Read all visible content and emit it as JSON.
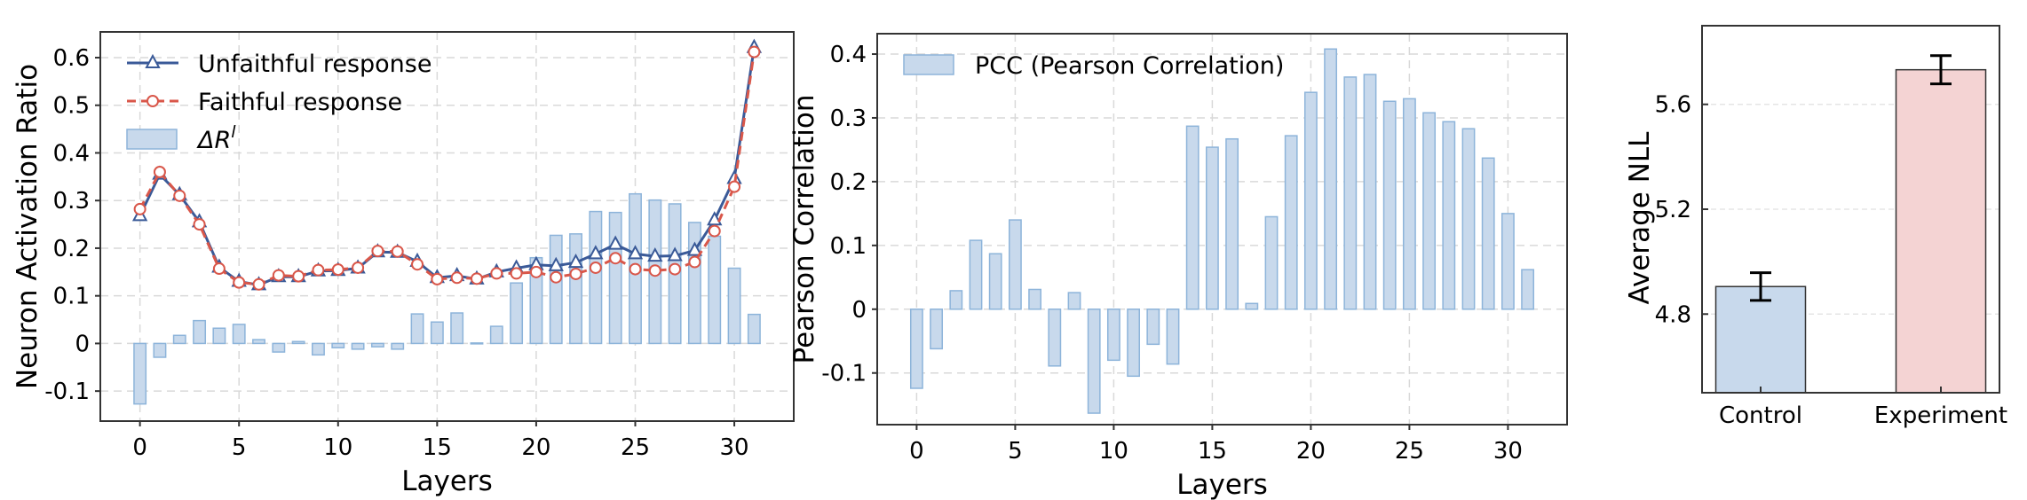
{
  "chart_data": [
    {
      "type": "line",
      "xlabel": "Layers",
      "ylabel": "Neuron Activation Ratio",
      "x": [
        0,
        1,
        2,
        3,
        4,
        5,
        6,
        7,
        8,
        9,
        10,
        11,
        12,
        13,
        14,
        15,
        16,
        17,
        18,
        19,
        20,
        21,
        22,
        23,
        24,
        25,
        26,
        27,
        28,
        29,
        30,
        31
      ],
      "xlim": [
        -2,
        33
      ],
      "ylim": [
        -0.163,
        0.654
      ],
      "xticks": [
        "0",
        "5",
        "10",
        "15",
        "20",
        "25",
        "30"
      ],
      "yticks": [
        "-0.1",
        "0",
        "0.1",
        "0.2",
        "0.3",
        "0.4",
        "0.5",
        "0.6"
      ],
      "grid": true,
      "legend_position": "top-left",
      "series": [
        {
          "name": "Unfaithful response",
          "kind": "line",
          "marker": "triangle",
          "color": "#3a5a98",
          "values": [
            0.268,
            0.355,
            0.312,
            0.255,
            0.16,
            0.13,
            0.123,
            0.14,
            0.14,
            0.152,
            0.153,
            0.158,
            0.192,
            0.191,
            0.172,
            0.138,
            0.142,
            0.135,
            0.15,
            0.158,
            0.165,
            0.163,
            0.17,
            0.188,
            0.208,
            0.188,
            0.183,
            0.184,
            0.195,
            0.259,
            0.346,
            0.621
          ]
        },
        {
          "name": "Faithful response",
          "kind": "dashed-line",
          "marker": "circle",
          "color": "#d9574a",
          "values": [
            0.282,
            0.36,
            0.31,
            0.25,
            0.157,
            0.128,
            0.124,
            0.143,
            0.141,
            0.154,
            0.155,
            0.159,
            0.194,
            0.193,
            0.166,
            0.135,
            0.138,
            0.136,
            0.147,
            0.147,
            0.15,
            0.139,
            0.146,
            0.159,
            0.179,
            0.156,
            0.153,
            0.156,
            0.171,
            0.236,
            0.329,
            0.612
          ]
        },
        {
          "name": "ΔR",
          "name_superscript": "l",
          "kind": "bar",
          "color": "#c8d9ec",
          "edge": "#8db4da",
          "values": [
            -0.127,
            -0.029,
            0.017,
            0.048,
            0.032,
            0.04,
            0.008,
            -0.018,
            0.004,
            -0.024,
            -0.009,
            -0.012,
            -0.007,
            -0.012,
            0.062,
            0.045,
            0.064,
            0.001,
            0.036,
            0.127,
            0.18,
            0.227,
            0.23,
            0.277,
            0.275,
            0.314,
            0.301,
            0.293,
            0.254,
            0.225,
            0.158,
            0.061
          ]
        }
      ]
    },
    {
      "type": "bar",
      "xlabel": "Layers",
      "ylabel": "Pearson Correlation",
      "x": [
        0,
        1,
        2,
        3,
        4,
        5,
        6,
        7,
        8,
        9,
        10,
        11,
        12,
        13,
        14,
        15,
        16,
        17,
        18,
        19,
        20,
        21,
        22,
        23,
        24,
        25,
        26,
        27,
        28,
        29,
        30,
        31
      ],
      "xlim": [
        -2,
        33
      ],
      "ylim": [
        -0.181,
        0.432
      ],
      "xticks": [
        "0",
        "5",
        "10",
        "15",
        "20",
        "25",
        "30"
      ],
      "yticks": [
        "-0.1",
        "0",
        "0.1",
        "0.2",
        "0.3",
        "0.4"
      ],
      "grid": true,
      "legend_position": "top-left",
      "series": [
        {
          "name": "PCC (Pearson Correlation)",
          "color": "#c8d9ec",
          "edge": "#8db4da",
          "values": [
            -0.124,
            -0.062,
            0.029,
            0.108,
            0.087,
            0.14,
            0.031,
            -0.089,
            0.026,
            -0.163,
            -0.08,
            -0.105,
            -0.055,
            -0.086,
            0.287,
            0.254,
            0.267,
            0.009,
            0.145,
            0.272,
            0.34,
            0.408,
            0.364,
            0.368,
            0.326,
            0.33,
            0.308,
            0.294,
            0.283,
            0.237,
            0.15,
            0.062
          ]
        }
      ]
    },
    {
      "type": "bar",
      "xlabel": "",
      "ylabel": "Average NLL",
      "categories": [
        "Control",
        "Experiment"
      ],
      "values": [
        4.905,
        5.732
      ],
      "errors": [
        0.053,
        0.054
      ],
      "colors": [
        "#c8d9ec",
        "#f4d3d3"
      ],
      "ylim": [
        4.5,
        5.9
      ],
      "yticks": [
        "4.8",
        "5.2",
        "5.6"
      ],
      "grid": true
    }
  ]
}
